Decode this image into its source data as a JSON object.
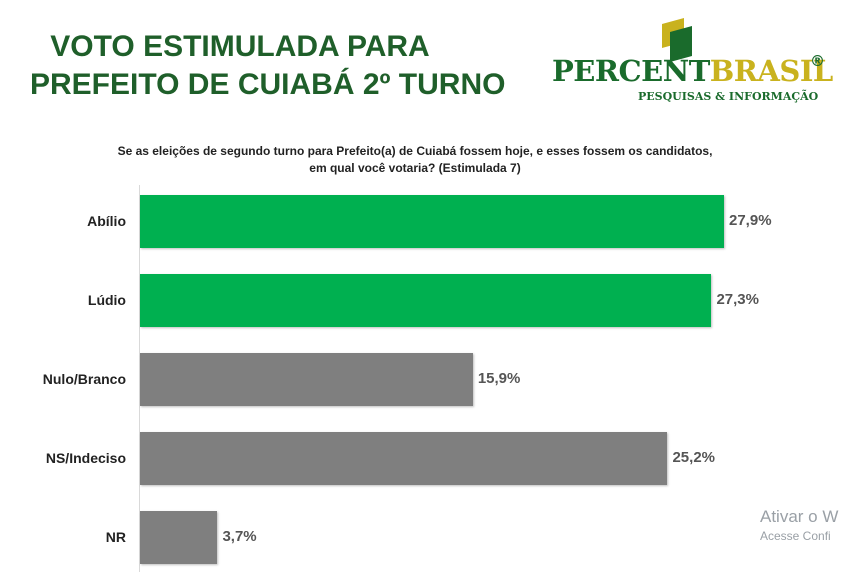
{
  "title": {
    "line1": "VOTO ESTIMULADA PARA",
    "line2": "PREFEITO DE  CUIABÁ 2º TURNO"
  },
  "logo": {
    "name_part1": "PERCENT",
    "name_part2": "BRASIL",
    "registered": "®",
    "tagline": "PESQUISAS & INFORMAÇÃO",
    "icon": "flag-mark-icon"
  },
  "colors": {
    "title": "#1f5f2a",
    "candidate_bar": "#00b050",
    "other_bar": "#7f7f7f",
    "logo_green": "#1a6b2c",
    "logo_gold": "#c9b21e"
  },
  "chart_data": {
    "type": "bar",
    "orientation": "horizontal",
    "title": "Se as eleições de segundo turno para Prefeito(a) de Cuiabá fossem hoje, e esses fossem os candidatos, em qual você votaria? (Estimulada 7)",
    "categories": [
      "Abílio",
      "Lúdio",
      "Nulo/Branco",
      "NS/Indeciso",
      "NR"
    ],
    "values": [
      27.9,
      27.3,
      15.9,
      25.2,
      3.7
    ],
    "value_labels": [
      "27,9%",
      "27,3%",
      "15,9%",
      "25,2%",
      "3,7%"
    ],
    "bar_colors": [
      "#00b050",
      "#00b050",
      "#7f7f7f",
      "#7f7f7f",
      "#7f7f7f"
    ],
    "xlabel": "",
    "ylabel": "",
    "xlim": [
      0,
      30
    ],
    "grid": false,
    "legend": "none"
  },
  "watermark": {
    "line1": "Ativar o W",
    "line2": "Acesse Confi"
  }
}
